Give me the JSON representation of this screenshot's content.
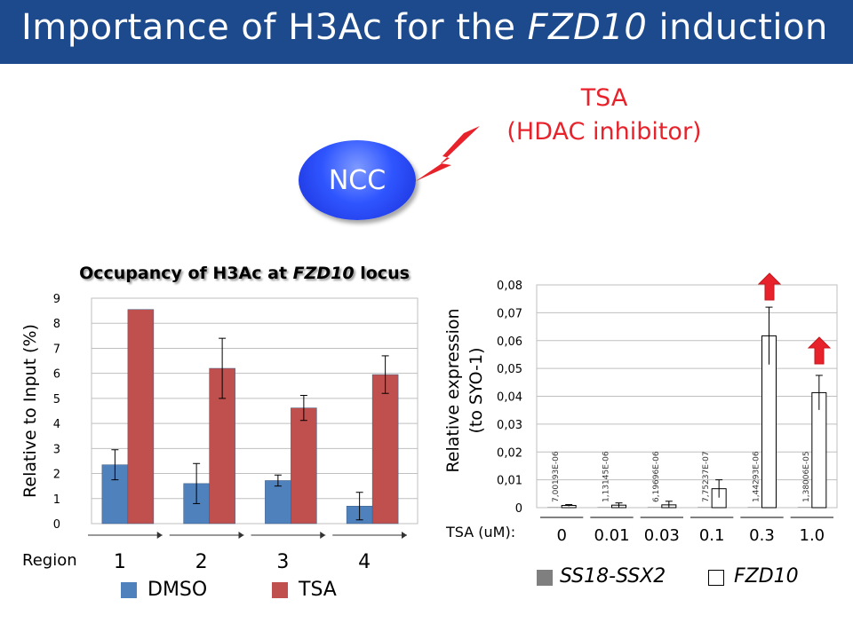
{
  "slide": {
    "title_pre": "Importance of H3Ac for the ",
    "title_italic": "FZD10",
    "title_post": " induction",
    "treatment_line1": "TSA",
    "treatment_line2": "(HDAC inhibitor)",
    "cell_label": "NCC"
  },
  "colors": {
    "header_bg": "#1d4a8c",
    "dmso": "#4f81bd",
    "tsa": "#c0504d",
    "accent_red": "#e8222b",
    "ss18_ssx2": "#7f7f7f",
    "fzd10": "#ffffff"
  },
  "icons": [
    "lightning-bolt-icon",
    "up-arrow-icon"
  ],
  "chart_data": [
    {
      "type": "bar",
      "title_pre": "Occupancy of H3Ac at ",
      "title_italic": "FZD10",
      "title_post": " locus",
      "ylabel": "Relative to Input (%)",
      "xlabel": "Region",
      "categories": [
        "1",
        "2",
        "3",
        "4"
      ],
      "ylim": [
        0,
        9
      ],
      "yticks": [
        "0",
        "1",
        "2",
        "3",
        "4",
        "5",
        "6",
        "7",
        "8",
        "9"
      ],
      "grid": true,
      "legend_position": "bottom",
      "series": [
        {
          "name": "DMSO",
          "values": [
            2.35,
            1.6,
            1.72,
            0.7
          ],
          "errors": [
            0.6,
            0.8,
            0.22,
            0.55
          ]
        },
        {
          "name": "TSA",
          "values": [
            8.55,
            6.2,
            4.62,
            5.95
          ],
          "errors": [
            0,
            1.2,
            0.5,
            0.75
          ]
        }
      ]
    },
    {
      "type": "bar",
      "ylabel_line1": "Relative expression",
      "ylabel_line2": "(to SYO-1)",
      "xlabel": "TSA (uM):",
      "categories": [
        "0",
        "0.01",
        "0.03",
        "0.1",
        "0.3",
        "1.0"
      ],
      "ylim": [
        0,
        0.08
      ],
      "yticks": [
        "0",
        "0,01",
        "0,02",
        "0,03",
        "0,04",
        "0,05",
        "0,06",
        "0,07",
        "0,08"
      ],
      "grid": true,
      "legend_position": "bottom",
      "series": [
        {
          "name": "SS18-SSX2",
          "values": [
            7.00193e-06,
            1.13145e-06,
            6.19696e-06,
            7.75237e-07,
            1.44293e-06,
            1.38006e-05
          ]
        },
        {
          "name": "FZD10",
          "values": [
            0.0008,
            0.0009,
            0.001,
            0.0068,
            0.0617,
            0.0413
          ],
          "errors": [
            0.0003,
            0.0008,
            0.0013,
            0.0032,
            0.0103,
            0.0062
          ]
        }
      ],
      "data_labels": [
        "7,00193E-06",
        "1,13145E-06",
        "6,19696E-06",
        "7,75237E-07",
        "1,44293E-06",
        "1,38006E-05"
      ]
    }
  ]
}
